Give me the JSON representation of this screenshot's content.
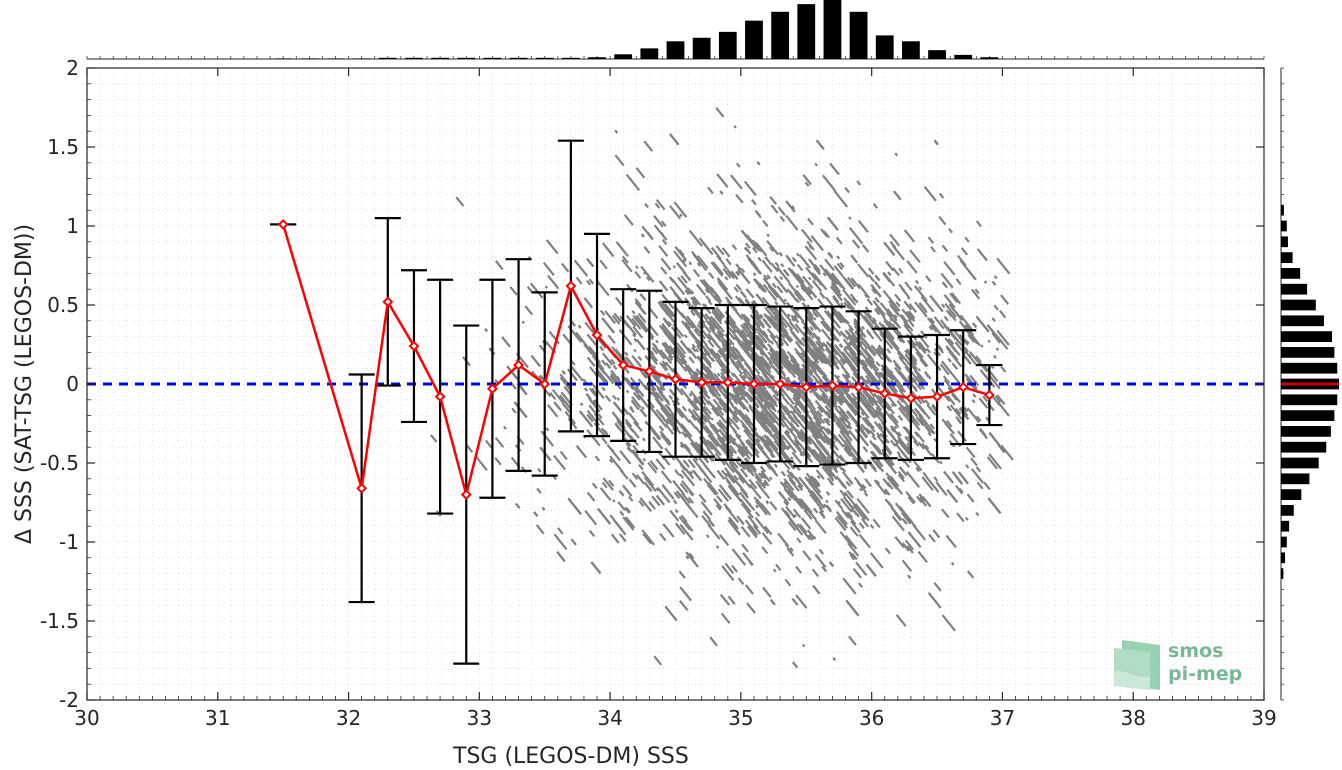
{
  "chart_data": {
    "type": "scatter",
    "title": "",
    "xlabel": "TSG (LEGOS-DM) SSS",
    "ylabel": "Δ SSS (SAT-TSG (LEGOS-DM))",
    "xlim": [
      30,
      39
    ],
    "ylim": [
      -2,
      2
    ],
    "xticks": [
      "30",
      "31",
      "32",
      "33",
      "34",
      "35",
      "36",
      "37",
      "38",
      "39"
    ],
    "yticks": [
      "2",
      "1.5",
      "1",
      "0.5",
      "0",
      "-0.5",
      "-1",
      "-1.5",
      "-2"
    ],
    "grid": true,
    "scatter_color": "#808080",
    "scatter_cloud": {
      "center_x": 35.3,
      "center_y": 0.0,
      "spread_x": 0.85,
      "spread_y": 0.5,
      "x_range": [
        32.0,
        37.0
      ]
    },
    "binned_mean": {
      "color": "#ff0000",
      "x": [
        31.5,
        32.1,
        32.3,
        32.5,
        32.7,
        32.9,
        33.1,
        33.3,
        33.5,
        33.7,
        33.9,
        34.1,
        34.3,
        34.5,
        34.7,
        34.9,
        35.1,
        35.3,
        35.5,
        35.7,
        35.9,
        36.1,
        36.3,
        36.5,
        36.7,
        36.9
      ],
      "y": [
        1.01,
        -0.66,
        0.52,
        0.24,
        -0.08,
        -0.7,
        -0.03,
        0.12,
        0.0,
        0.62,
        0.31,
        0.12,
        0.08,
        0.03,
        0.01,
        0.01,
        0.0,
        0.0,
        -0.02,
        -0.01,
        -0.02,
        -0.06,
        -0.09,
        -0.08,
        -0.02,
        -0.07
      ],
      "std": [
        0.0,
        0.72,
        0.53,
        0.48,
        0.74,
        1.07,
        0.69,
        0.67,
        0.58,
        0.92,
        0.64,
        0.48,
        0.51,
        0.49,
        0.47,
        0.49,
        0.5,
        0.49,
        0.5,
        0.5,
        0.48,
        0.41,
        0.39,
        0.39,
        0.36,
        0.19
      ]
    },
    "zero_line": {
      "y": 0,
      "color": "#0000dd",
      "style": "dashed"
    },
    "top_histogram": {
      "x": [
        31.5,
        31.7,
        31.9,
        32.1,
        32.3,
        32.5,
        32.7,
        32.9,
        33.1,
        33.3,
        33.5,
        33.7,
        33.9,
        34.1,
        34.3,
        34.5,
        34.7,
        34.9,
        35.1,
        35.3,
        35.5,
        35.7,
        35.9,
        36.1,
        36.3,
        36.5,
        36.7,
        36.9
      ],
      "counts": [
        0.01,
        0.01,
        0.01,
        0.01,
        0.02,
        0.02,
        0.02,
        0.02,
        0.02,
        0.02,
        0.02,
        0.02,
        0.03,
        0.08,
        0.18,
        0.3,
        0.36,
        0.46,
        0.65,
        0.8,
        0.93,
        1.0,
        0.8,
        0.4,
        0.3,
        0.15,
        0.07,
        0.03
      ]
    },
    "right_histogram": {
      "y": [
        1.1,
        1.0,
        0.9,
        0.8,
        0.7,
        0.6,
        0.5,
        0.4,
        0.3,
        0.2,
        0.1,
        0.0,
        -0.1,
        -0.2,
        -0.3,
        -0.4,
        -0.5,
        -0.6,
        -0.7,
        -0.8,
        -0.9,
        -1.0,
        -1.1,
        -1.2
      ],
      "counts": [
        0.05,
        0.1,
        0.12,
        0.2,
        0.33,
        0.45,
        0.6,
        0.74,
        0.88,
        0.92,
        0.97,
        1.0,
        0.97,
        0.92,
        0.86,
        0.78,
        0.65,
        0.49,
        0.35,
        0.22,
        0.14,
        0.1,
        0.07,
        0.04
      ],
      "median_color": "#cc0000"
    }
  },
  "logo": {
    "line1": "smos",
    "line2": "pi-mep"
  }
}
